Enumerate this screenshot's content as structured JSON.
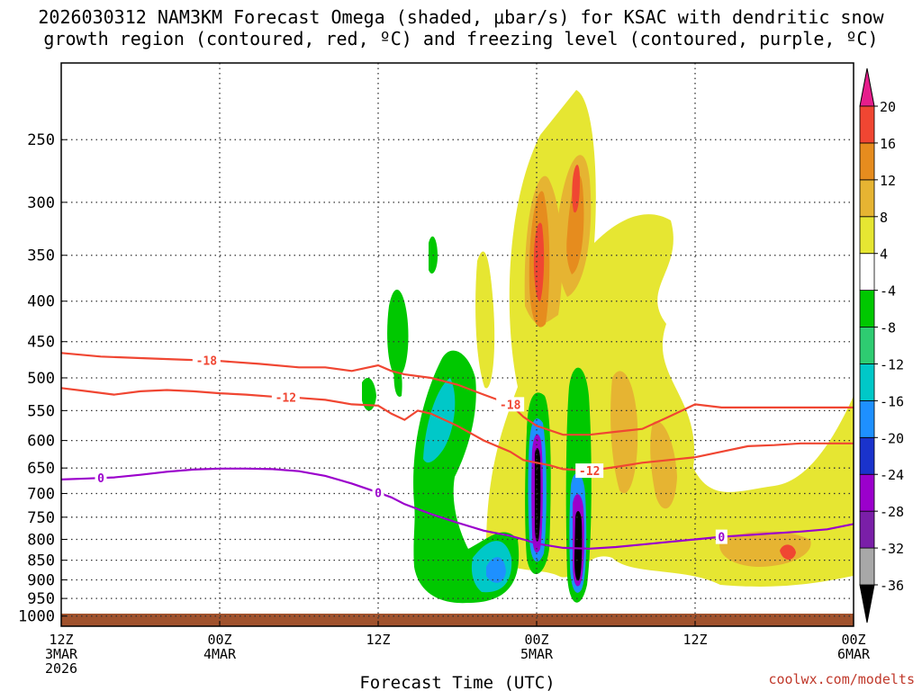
{
  "header": {
    "title_line1": "2026030312 NAM3KM Forecast Omega (shaded, μbar/s) for KSAC with dendritic snow",
    "title_line2": "growth region (contoured, red, ºC) and freezing level (contoured, purple, ºC)"
  },
  "footer": {
    "url": "coolwx.com/modelts"
  },
  "chart_data": {
    "type": "heatmap",
    "title": "2026030312 NAM3KM Forecast Omega (shaded, μbar/s) for KSAC with dendritic snow growth region (contoured, red, ºC) and freezing level (contoured, purple, ºC)",
    "xlabel": "Forecast Time (UTC)",
    "ylabel": "",
    "x_hours_range": [
      0,
      60
    ],
    "y_pressure_range": [
      1030,
      200
    ],
    "y_ticks": [
      250,
      300,
      350,
      400,
      450,
      500,
      550,
      600,
      650,
      700,
      750,
      800,
      850,
      900,
      950,
      1000
    ],
    "x_ticks": [
      {
        "hour": 0,
        "line1": "12Z",
        "line2": "3MAR",
        "line3": "2026"
      },
      {
        "hour": 12,
        "line1": "00Z",
        "line2": "4MAR",
        "line3": ""
      },
      {
        "hour": 24,
        "line1": "12Z",
        "line2": "",
        "line3": ""
      },
      {
        "hour": 36,
        "line1": "00Z",
        "line2": "5MAR",
        "line3": ""
      },
      {
        "hour": 48,
        "line1": "12Z",
        "line2": "",
        "line3": ""
      },
      {
        "hour": 60,
        "line1": "00Z",
        "line2": "6MAR",
        "line3": ""
      }
    ],
    "colorbar": {
      "colors": [
        "#000000",
        "#a8a8a8",
        "#7a1fa8",
        "#9b00cc",
        "#1a33cc",
        "#1e90ff",
        "#00c8c8",
        "#2ecc71",
        "#00c800",
        "#ffffff",
        "#e6e632",
        "#e6b432",
        "#e68c1e",
        "#f04632",
        "#e61e8c"
      ],
      "labels": [
        "-36",
        "-32",
        "-28",
        "-24",
        "-20",
        "-16",
        "-12",
        "-8",
        "-4",
        "4",
        "8",
        "12",
        "16",
        "20"
      ]
    },
    "series": [
      {
        "name": "-18 ºC (dendritic top)",
        "color": "#f04632",
        "label": "-18",
        "hours": [
          0,
          3,
          6,
          9,
          12,
          15,
          18,
          20,
          22,
          24,
          25,
          26,
          28,
          30,
          32,
          34,
          35,
          36,
          38,
          40,
          42,
          44,
          46,
          48,
          50,
          52,
          54,
          56,
          58,
          60
        ],
        "pressures": [
          465,
          470,
          472,
          474,
          476,
          480,
          485,
          485,
          490,
          482,
          490,
          495,
          500,
          510,
          525,
          540,
          560,
          575,
          590,
          590,
          585,
          580,
          560,
          540,
          545,
          545,
          545,
          545,
          545,
          545
        ],
        "label_at": [
          11,
          34
        ]
      },
      {
        "name": "-12 ºC (dendritic bottom)",
        "color": "#f04632",
        "label": "-12",
        "hours": [
          0,
          2,
          4,
          6,
          8,
          10,
          12,
          14,
          16,
          18,
          20,
          22,
          24,
          25,
          26,
          27,
          28,
          30,
          32,
          34,
          35,
          36,
          37,
          38,
          40,
          42,
          44,
          46,
          48,
          50,
          52,
          54,
          56,
          58,
          60
        ],
        "pressures": [
          515,
          520,
          525,
          520,
          518,
          520,
          523,
          525,
          528,
          530,
          533,
          540,
          542,
          555,
          565,
          550,
          555,
          575,
          600,
          620,
          635,
          640,
          645,
          652,
          655,
          648,
          640,
          635,
          630,
          620,
          610,
          608,
          605,
          605,
          605
        ],
        "label_at": [
          17,
          40
        ]
      },
      {
        "name": "0 ºC freezing level",
        "color": "#9b00cc",
        "label": "0",
        "hours": [
          0,
          2,
          4,
          6,
          8,
          10,
          12,
          14,
          16,
          18,
          20,
          22,
          24,
          25,
          26,
          28,
          30,
          32,
          34,
          35,
          36,
          37,
          38,
          40,
          42,
          44,
          46,
          48,
          50,
          52,
          54,
          56,
          58,
          60
        ],
        "pressures": [
          672,
          670,
          668,
          663,
          657,
          653,
          651,
          651,
          652,
          656,
          665,
          680,
          698,
          708,
          722,
          743,
          762,
          780,
          792,
          800,
          810,
          815,
          820,
          822,
          818,
          812,
          806,
          800,
          794,
          790,
          786,
          782,
          777,
          765
        ],
        "label_at": [
          3,
          24,
          50
        ]
      }
    ]
  }
}
